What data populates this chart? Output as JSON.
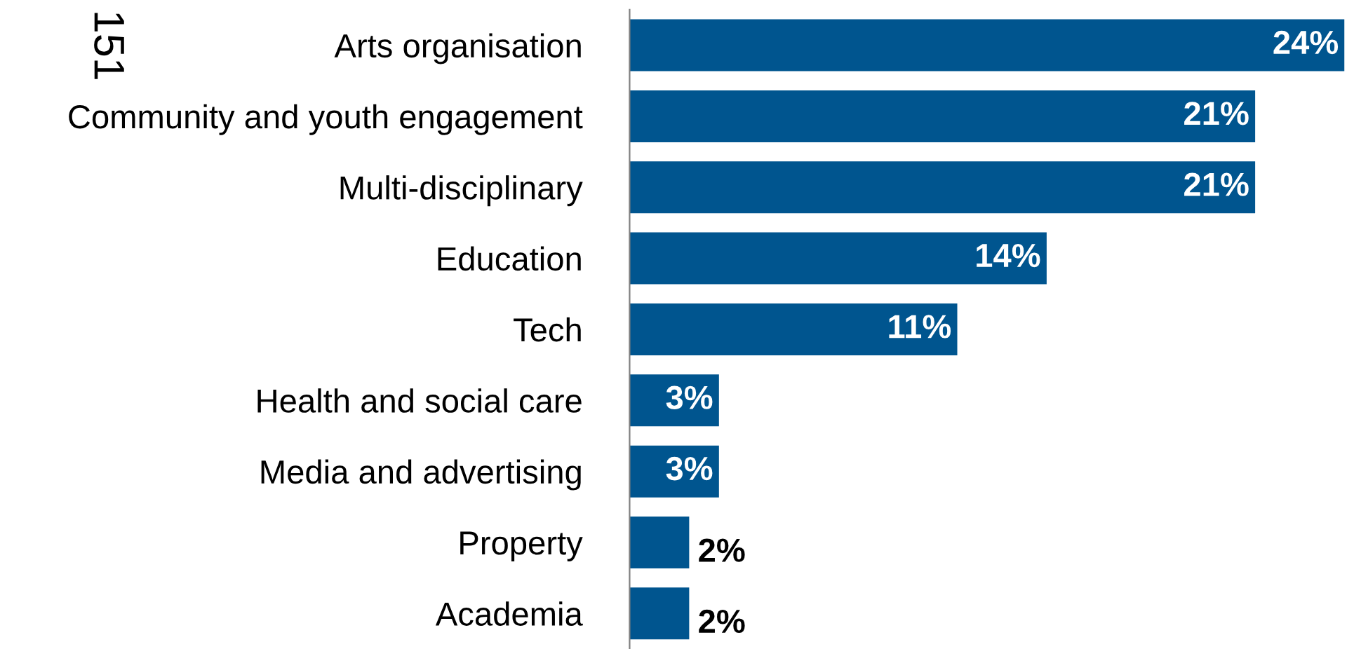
{
  "chart_data": {
    "type": "bar",
    "orientation": "horizontal",
    "categories": [
      "Arts organisation",
      "Community and youth engagement",
      "Multi-disciplinary",
      "Education",
      "Tech",
      "Health and social care",
      "Media and advertising",
      "Property",
      "Academia"
    ],
    "values": [
      24,
      21,
      21,
      14,
      11,
      3,
      3,
      2,
      2
    ],
    "color": "#00558f",
    "value_labels": [
      "24%",
      "21%",
      "21%",
      "14%",
      "11%",
      "3%",
      "3%",
      "2%",
      "2%"
    ],
    "annotations": [
      "151"
    ],
    "tick_labels": "y"
  }
}
